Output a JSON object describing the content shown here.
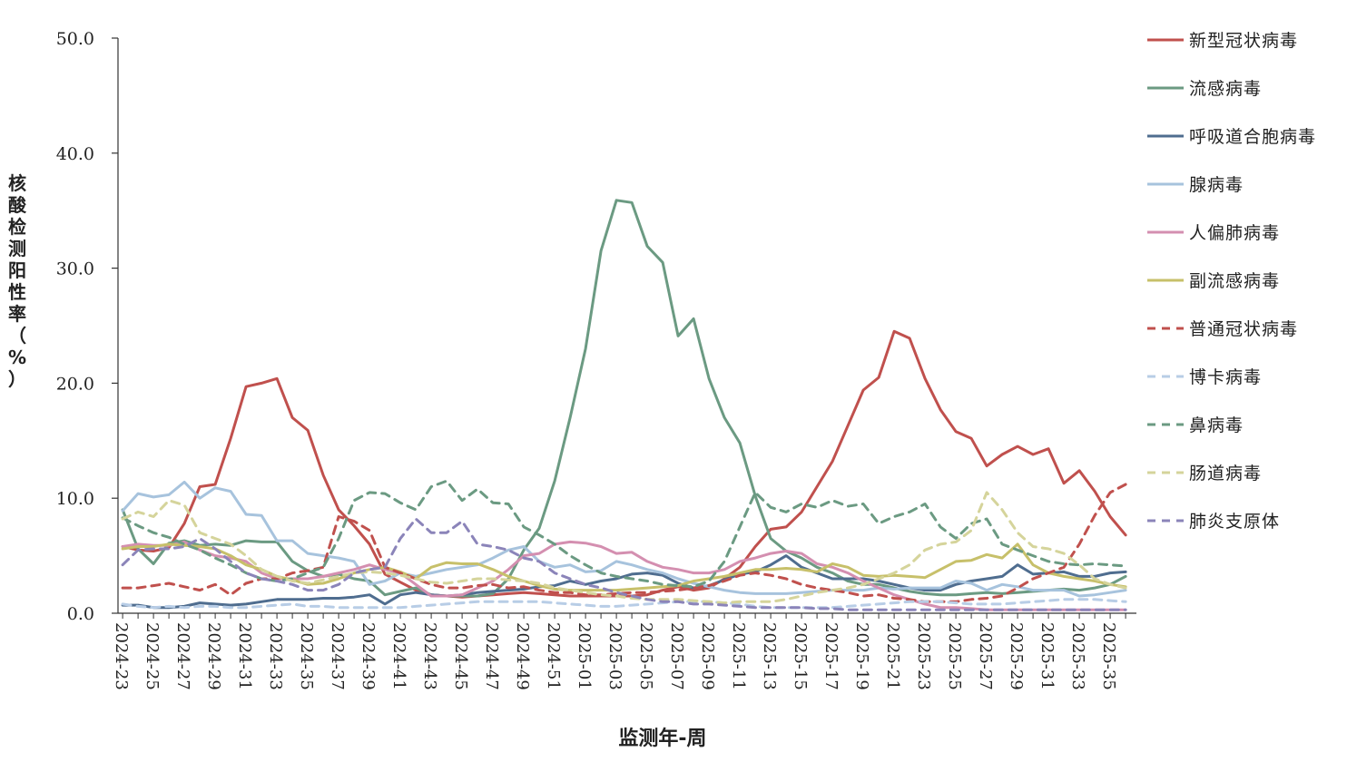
{
  "chart_data": {
    "type": "line",
    "title": "",
    "xlabel": "监测年-周",
    "ylabel": "核酸检测阳性率（%）",
    "ylim": [
      0,
      50
    ],
    "yticks": [
      "0.0",
      "10.0",
      "20.0",
      "30.0",
      "40.0",
      "50.0"
    ],
    "grid": false,
    "legend_position": "right",
    "x_tick_labels": [
      "2024-23",
      "2024-25",
      "2024-27",
      "2024-29",
      "2024-31",
      "2024-33",
      "2024-35",
      "2024-37",
      "2024-39",
      "2024-41",
      "2024-43",
      "2024-45",
      "2024-47",
      "2024-49",
      "2024-51",
      "2025-01",
      "2025-03",
      "2025-05",
      "2025-07",
      "2025-09",
      "2025-11",
      "2025-13",
      "2025-15",
      "2025-17",
      "2025-19",
      "2025-21",
      "2025-23",
      "2025-25",
      "2025-27",
      "2025-29",
      "2025-31",
      "2025-33",
      "2025-35"
    ],
    "x": [
      "2024-23",
      "2024-24",
      "2024-25",
      "2024-26",
      "2024-27",
      "2024-28",
      "2024-29",
      "2024-30",
      "2024-31",
      "2024-32",
      "2024-33",
      "2024-34",
      "2024-35",
      "2024-36",
      "2024-37",
      "2024-38",
      "2024-39",
      "2024-40",
      "2024-41",
      "2024-42",
      "2024-43",
      "2024-44",
      "2024-45",
      "2024-46",
      "2024-47",
      "2024-48",
      "2024-49",
      "2024-50",
      "2024-51",
      "2024-52",
      "2025-01",
      "2025-02",
      "2025-03",
      "2025-04",
      "2025-05",
      "2025-06",
      "2025-07",
      "2025-08",
      "2025-09",
      "2025-10",
      "2025-11",
      "2025-12",
      "2025-13",
      "2025-14",
      "2025-15",
      "2025-16",
      "2025-17",
      "2025-18",
      "2025-19",
      "2025-20",
      "2025-21",
      "2025-22",
      "2025-23",
      "2025-24",
      "2025-25",
      "2025-26",
      "2025-27",
      "2025-28",
      "2025-29",
      "2025-30",
      "2025-31",
      "2025-32",
      "2025-33",
      "2025-34",
      "2025-35",
      "2025-36"
    ],
    "series": [
      {
        "name": "新型冠状病毒",
        "color": "#c0504d",
        "dash": false,
        "values": [
          5.8,
          5.5,
          5.4,
          5.7,
          7.8,
          11.0,
          11.2,
          15.2,
          19.7,
          20.0,
          20.4,
          17.0,
          15.9,
          12.0,
          9.0,
          7.6,
          6.0,
          3.4,
          2.7,
          2.0,
          1.6,
          1.5,
          1.4,
          1.5,
          1.6,
          1.7,
          1.8,
          1.7,
          1.6,
          1.5,
          1.5,
          1.5,
          1.5,
          1.5,
          1.6,
          2.0,
          2.3,
          2.0,
          2.2,
          3.0,
          4.0,
          5.8,
          7.3,
          7.5,
          8.8,
          11.0,
          13.2,
          16.3,
          19.4,
          20.5,
          24.5,
          23.9,
          20.4,
          17.7,
          15.8,
          15.2,
          12.8,
          13.8,
          14.5,
          13.8,
          14.3,
          11.3,
          12.4,
          10.6,
          8.4,
          6.8
        ]
      },
      {
        "name": "流感病毒",
        "color": "#6b9a82",
        "dash": false,
        "values": [
          9.0,
          5.6,
          4.3,
          6.1,
          6.3,
          5.9,
          6.0,
          5.9,
          6.3,
          6.2,
          6.2,
          4.5,
          3.7,
          3.2,
          3.4,
          3.0,
          2.8,
          1.6,
          1.9,
          2.2,
          1.6,
          1.5,
          1.5,
          1.5,
          1.7,
          3.0,
          5.5,
          7.4,
          11.5,
          17.0,
          23.0,
          31.5,
          35.9,
          35.7,
          31.9,
          30.5,
          24.1,
          25.6,
          20.4,
          17.0,
          14.8,
          10.2,
          6.5,
          5.4,
          4.8,
          4.0,
          3.5,
          2.8,
          2.5,
          2.5,
          2.2,
          1.9,
          1.7,
          1.6,
          1.6,
          1.7,
          1.8,
          1.7,
          1.8,
          1.9,
          2.0,
          2.1,
          2.0,
          2.2,
          2.5,
          3.2
        ]
      },
      {
        "name": "呼吸道合胞病毒",
        "color": "#4f6d8f",
        "dash": false,
        "values": [
          0.7,
          0.7,
          0.5,
          0.5,
          0.6,
          0.9,
          0.8,
          0.7,
          0.8,
          1.0,
          1.2,
          1.2,
          1.2,
          1.3,
          1.3,
          1.4,
          1.6,
          0.8,
          1.6,
          1.8,
          1.6,
          1.5,
          1.6,
          1.8,
          1.9,
          2.0,
          2.1,
          2.3,
          2.4,
          2.8,
          2.5,
          2.8,
          3.0,
          3.4,
          3.5,
          3.3,
          2.6,
          2.2,
          2.4,
          2.9,
          3.4,
          3.6,
          4.2,
          5.0,
          4.0,
          3.5,
          3.0,
          3.0,
          3.0,
          2.8,
          2.5,
          2.2,
          2.0,
          2.0,
          2.5,
          2.8,
          3.0,
          3.2,
          4.2,
          3.4,
          3.5,
          3.6,
          3.2,
          3.2,
          3.5,
          3.6
        ]
      },
      {
        "name": "腺病毒",
        "color": "#a7c3dd",
        "dash": false,
        "values": [
          8.9,
          10.4,
          10.1,
          10.3,
          11.4,
          10.0,
          10.9,
          10.6,
          8.6,
          8.5,
          6.3,
          6.3,
          5.2,
          5.0,
          4.8,
          4.5,
          2.5,
          2.8,
          3.5,
          3.2,
          3.5,
          3.8,
          4.0,
          4.2,
          4.8,
          5.5,
          5.8,
          4.5,
          4.0,
          4.2,
          3.6,
          3.7,
          4.5,
          4.2,
          3.8,
          3.5,
          3.0,
          2.6,
          2.3,
          2.0,
          1.8,
          1.7,
          1.7,
          1.7,
          1.8,
          1.9,
          2.0,
          2.0,
          2.0,
          2.2,
          2.1,
          2.2,
          2.2,
          2.2,
          2.8,
          2.6,
          2.0,
          2.5,
          2.3,
          2.0,
          2.0,
          2.0,
          1.5,
          1.6,
          1.8,
          2.0
        ]
      },
      {
        "name": "人偏肺病毒",
        "color": "#d48fb0",
        "dash": false,
        "values": [
          5.8,
          6.0,
          5.9,
          5.9,
          6.2,
          5.5,
          5.0,
          4.8,
          4.5,
          3.5,
          3.0,
          3.0,
          3.0,
          3.2,
          3.5,
          3.8,
          4.2,
          3.8,
          3.5,
          2.5,
          1.5,
          1.5,
          1.6,
          2.2,
          2.8,
          3.8,
          5.0,
          5.2,
          6.0,
          6.2,
          6.1,
          5.8,
          5.2,
          5.3,
          4.5,
          4.0,
          3.8,
          3.5,
          3.5,
          3.8,
          4.5,
          4.8,
          5.2,
          5.4,
          5.2,
          4.3,
          4.0,
          3.5,
          2.8,
          2.2,
          1.6,
          1.2,
          0.8,
          0.5,
          0.5,
          0.4,
          0.3,
          0.3,
          0.3,
          0.3,
          0.3,
          0.3,
          0.3,
          0.3,
          0.3,
          0.3
        ]
      },
      {
        "name": "副流感病毒",
        "color": "#c7c06a",
        "dash": false,
        "values": [
          5.6,
          5.8,
          5.8,
          6.0,
          5.9,
          5.8,
          5.6,
          5.0,
          4.2,
          3.8,
          3.2,
          2.9,
          2.5,
          2.6,
          3.0,
          3.5,
          3.8,
          4.0,
          3.6,
          3.0,
          4.0,
          4.4,
          4.3,
          4.3,
          3.8,
          3.2,
          2.8,
          2.4,
          2.1,
          2.0,
          2.0,
          2.0,
          2.0,
          2.1,
          2.2,
          2.3,
          2.4,
          2.8,
          3.0,
          3.2,
          3.5,
          3.8,
          3.8,
          3.9,
          3.8,
          3.6,
          4.3,
          4.0,
          3.3,
          3.2,
          3.3,
          3.2,
          3.1,
          3.8,
          4.5,
          4.6,
          5.1,
          4.8,
          6.0,
          4.2,
          3.5,
          3.2,
          3.0,
          2.8,
          2.5,
          2.3
        ]
      },
      {
        "name": "普通冠状病毒",
        "color": "#c0504d",
        "dash": true,
        "values": [
          2.2,
          2.2,
          2.4,
          2.6,
          2.3,
          2.0,
          2.5,
          1.6,
          2.6,
          3.0,
          3.0,
          3.5,
          3.7,
          4.0,
          8.4,
          8.0,
          7.2,
          4.0,
          3.5,
          3.0,
          2.5,
          2.2,
          2.2,
          2.4,
          2.5,
          2.2,
          2.3,
          2.0,
          1.8,
          1.8,
          1.6,
          1.6,
          1.7,
          1.8,
          1.8,
          1.9,
          2.0,
          2.2,
          2.4,
          2.8,
          3.3,
          3.5,
          3.3,
          3.0,
          2.5,
          2.2,
          2.0,
          1.8,
          1.5,
          1.6,
          1.3,
          1.2,
          1.0,
          1.0,
          1.0,
          1.2,
          1.3,
          1.5,
          2.2,
          3.0,
          3.5,
          4.0,
          6.0,
          8.5,
          10.5,
          11.2
        ]
      },
      {
        "name": "博卡病毒",
        "color": "#b8cde6",
        "dash": true,
        "values": [
          0.8,
          0.6,
          0.5,
          0.6,
          0.5,
          0.6,
          0.6,
          0.5,
          0.5,
          0.6,
          0.7,
          0.8,
          0.6,
          0.6,
          0.5,
          0.5,
          0.5,
          0.5,
          0.5,
          0.6,
          0.7,
          0.8,
          0.9,
          1.0,
          1.0,
          1.0,
          1.0,
          1.0,
          0.9,
          0.8,
          0.7,
          0.6,
          0.6,
          0.7,
          0.8,
          0.9,
          1.0,
          1.0,
          1.0,
          0.9,
          0.8,
          0.6,
          0.5,
          0.5,
          0.5,
          0.5,
          0.5,
          0.6,
          0.7,
          0.8,
          0.9,
          1.0,
          1.0,
          1.0,
          0.9,
          0.8,
          0.8,
          0.8,
          0.9,
          1.0,
          1.1,
          1.2,
          1.2,
          1.2,
          1.1,
          1.0
        ]
      },
      {
        "name": "鼻病毒",
        "color": "#6b9a82",
        "dash": true,
        "values": [
          8.3,
          7.6,
          7.0,
          6.6,
          6.0,
          5.5,
          4.8,
          4.2,
          3.5,
          3.0,
          2.8,
          3.0,
          3.5,
          4.0,
          6.5,
          9.8,
          10.5,
          10.4,
          9.6,
          9.0,
          11.0,
          11.5,
          9.8,
          10.8,
          9.6,
          9.5,
          7.5,
          6.8,
          6.0,
          5.0,
          4.2,
          3.5,
          3.2,
          3.0,
          2.8,
          2.5,
          2.4,
          2.3,
          2.8,
          4.5,
          7.5,
          10.5,
          9.2,
          8.8,
          9.5,
          9.2,
          9.8,
          9.3,
          9.5,
          7.8,
          8.4,
          8.8,
          9.5,
          7.5,
          6.5,
          7.8,
          8.2,
          6.0,
          5.5,
          5.0,
          4.5,
          4.3,
          4.2,
          4.3,
          4.2,
          4.1
        ]
      },
      {
        "name": "肠道病毒",
        "color": "#d5d49b",
        "dash": true,
        "values": [
          8.2,
          8.8,
          8.4,
          9.8,
          9.4,
          7.0,
          6.5,
          6.0,
          5.0,
          3.8,
          3.2,
          2.8,
          2.6,
          2.9,
          3.2,
          3.5,
          3.6,
          3.5,
          3.3,
          3.0,
          2.7,
          2.6,
          2.8,
          3.0,
          3.0,
          2.9,
          2.8,
          2.6,
          2.2,
          2.0,
          1.8,
          1.6,
          1.5,
          1.3,
          1.2,
          1.2,
          1.2,
          1.1,
          1.0,
          0.9,
          1.0,
          1.0,
          1.0,
          1.2,
          1.5,
          1.8,
          2.0,
          2.2,
          2.5,
          3.0,
          3.5,
          4.2,
          5.5,
          6.0,
          6.2,
          7.2,
          10.5,
          9.0,
          7.0,
          5.8,
          5.6,
          5.2,
          4.2,
          3.0,
          2.5,
          2.2
        ]
      },
      {
        "name": "肺炎支原体",
        "color": "#8b84b9",
        "dash": true,
        "values": [
          4.2,
          5.5,
          5.6,
          5.6,
          5.8,
          6.5,
          5.6,
          4.5,
          3.5,
          3.0,
          2.8,
          2.5,
          2.0,
          2.0,
          2.5,
          3.5,
          3.8,
          4.0,
          6.5,
          8.2,
          7.0,
          7.0,
          8.0,
          6.0,
          5.8,
          5.5,
          4.8,
          4.5,
          3.5,
          3.0,
          2.5,
          2.2,
          1.8,
          1.5,
          1.2,
          1.0,
          1.0,
          0.8,
          0.8,
          0.7,
          0.6,
          0.5,
          0.5,
          0.5,
          0.5,
          0.4,
          0.4,
          0.3,
          0.3,
          0.3,
          0.3,
          0.3,
          0.3,
          0.3,
          0.3,
          0.3,
          0.3,
          0.3,
          0.3,
          0.3,
          0.3,
          0.3,
          0.3,
          0.3,
          0.3,
          0.3
        ]
      }
    ]
  }
}
